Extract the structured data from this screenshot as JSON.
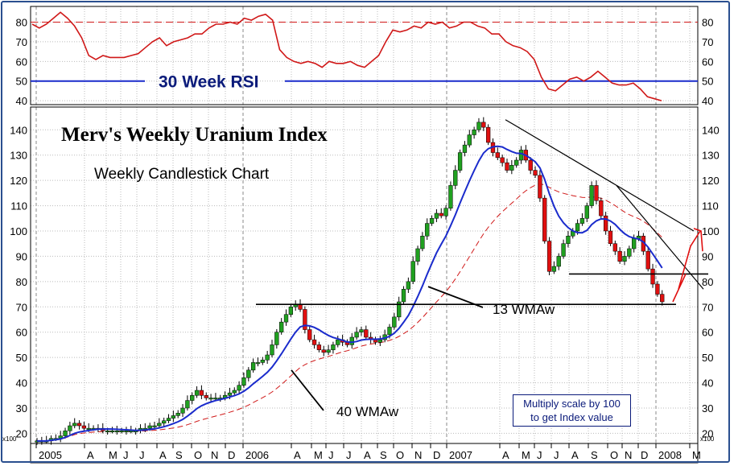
{
  "chart_data": [
    {
      "type": "line",
      "title": "30 Week RSI",
      "ylim": [
        38,
        88
      ],
      "y_ticks": [
        40,
        50,
        60,
        70,
        80
      ],
      "reference_lines": {
        "overbought": 80,
        "mid": 50
      },
      "grid": true,
      "series": [
        {
          "color": "#d01818",
          "values": [
            79,
            77,
            79,
            82,
            85,
            82,
            78,
            72,
            63,
            61,
            63,
            62,
            62,
            62,
            63,
            64,
            67,
            70,
            72,
            68,
            70,
            71,
            72,
            74,
            74,
            77,
            79,
            79,
            80,
            79,
            82,
            81,
            83,
            84,
            81,
            66,
            62,
            60,
            59,
            60,
            59,
            57,
            60,
            59,
            59,
            60,
            58,
            57,
            60,
            63,
            70,
            76,
            75,
            76,
            78,
            77,
            80,
            79,
            80,
            77,
            78,
            80,
            80,
            78,
            77,
            74,
            74,
            70,
            68,
            67,
            65,
            61,
            52,
            46,
            45,
            48,
            51,
            52,
            50,
            52,
            55,
            52,
            49,
            48,
            48,
            49,
            46,
            42,
            41,
            40
          ]
        }
      ]
    },
    {
      "type": "candlestick",
      "title": "Merv's Weekly Uranium Index",
      "subtitle": "Weekly Candlestick Chart",
      "unit_label": "x100",
      "ylim": [
        16,
        149
      ],
      "y_ticks": [
        20,
        30,
        40,
        50,
        60,
        70,
        80,
        90,
        100,
        110,
        120,
        130,
        140
      ],
      "x_tick_labels": [
        "2005",
        "A",
        "M",
        "J",
        "J",
        "A",
        "S",
        "O",
        "N",
        "D",
        "2006",
        "A",
        "M",
        "J",
        "J",
        "A",
        "S",
        "O",
        "N",
        "D",
        "2007",
        "A",
        "M",
        "J",
        "J",
        "A",
        "S",
        "O",
        "N",
        "D",
        "2008",
        "M"
      ],
      "grid": true,
      "close": [
        17,
        17,
        17,
        18,
        18,
        19,
        21,
        23,
        24,
        23,
        22,
        22,
        22,
        22,
        21,
        21,
        21,
        21,
        21,
        21,
        21,
        21,
        22,
        22,
        23,
        23,
        24,
        25,
        26,
        27,
        28,
        30,
        33,
        35,
        37,
        35,
        34,
        34,
        34,
        34,
        35,
        36,
        37,
        39,
        42,
        45,
        48,
        48,
        49,
        51,
        55,
        60,
        64,
        67,
        70,
        71,
        69,
        61,
        57,
        55,
        53,
        52,
        53,
        55,
        57,
        56,
        55,
        58,
        60,
        61,
        58,
        57,
        56,
        57,
        59,
        62,
        66,
        72,
        77,
        80,
        88,
        93,
        98,
        103,
        105,
        107,
        106,
        109,
        118,
        124,
        131,
        134,
        138,
        140,
        143,
        141,
        135,
        131,
        129,
        127,
        124,
        126,
        128,
        132,
        128,
        124,
        122,
        113,
        96,
        84,
        86,
        90,
        95,
        98,
        100,
        103,
        105,
        110,
        118,
        112,
        106,
        100,
        95,
        92,
        88,
        90,
        93,
        97,
        98,
        92,
        85,
        79,
        75,
        72
      ],
      "series": [
        {
          "name": "13 WMAw",
          "color": "#1a2bcc"
        },
        {
          "name": "40 WMAw",
          "color": "#d01818"
        }
      ],
      "support_lines": [
        71,
        83
      ],
      "annotations": [
        "13 WMAw",
        "40 WMAw"
      ],
      "note": [
        "Multiply scale by 100",
        "to get Index value"
      ]
    }
  ],
  "labels": {
    "rsi_title": "30 Week RSI",
    "main_title": "Merv's Weekly Uranium Index",
    "subtitle": "Weekly Candlestick Chart",
    "ma13_label": "13 WMAw",
    "ma40_label": "40 WMAw",
    "note_line1": "Multiply scale by 100",
    "note_line2": "to get Index value",
    "unit_left": "x100",
    "unit_right": "x100"
  },
  "colors": {
    "up": "#20a020",
    "down": "#e01010",
    "ma13": "#1a2bcc",
    "ma40": "#d01818",
    "rsi": "#d01818",
    "mid_line": "#1a2bcc",
    "border": "#2a4f8f"
  }
}
